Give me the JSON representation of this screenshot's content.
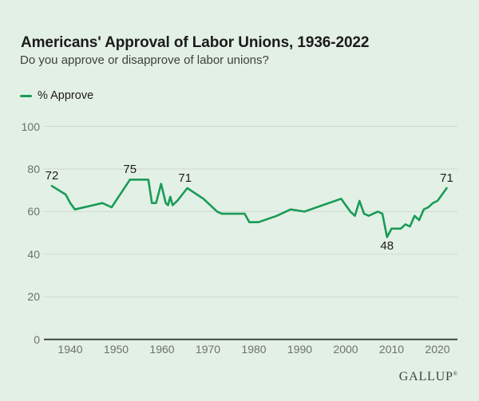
{
  "header": {
    "title": "Americans' Approval of Labor Unions, 1936-2022",
    "subtitle": "Do you approve or disapprove of labor unions?"
  },
  "legend": {
    "label": "% Approve"
  },
  "source": {
    "label": "GALLUP",
    "mark": "®"
  },
  "colors": {
    "background": "#e3f0e5",
    "line": "#199b57",
    "grid": "#d0d9d0",
    "axis": "#40473f",
    "tick_text": "#6c716c",
    "title_text": "#1b1b1b",
    "subtitle_text": "#3b403c",
    "label_text": "#1d1d1d",
    "logo_text": "#3d4540"
  },
  "chart_data": {
    "type": "line",
    "title": "Americans' Approval of Labor Unions, 1936-2022",
    "subtitle": "Do you approve or disapprove of labor unions?",
    "xlabel": "",
    "ylabel": "",
    "ylim": [
      0,
      100
    ],
    "xlim": [
      1934.3,
      2024.3
    ],
    "yticks": [
      0,
      20,
      40,
      60,
      80,
      100
    ],
    "xticks": [
      1940,
      1950,
      1960,
      1970,
      1980,
      1990,
      2000,
      2010,
      2020
    ],
    "grid": "horizontal",
    "legend_position": "top-left",
    "series": [
      {
        "name": "% Approve",
        "points": [
          [
            1936,
            72
          ],
          [
            1939,
            68
          ],
          [
            1940,
            64
          ],
          [
            1941,
            61
          ],
          [
            1947,
            64
          ],
          [
            1949,
            62
          ],
          [
            1953,
            75
          ],
          [
            1957,
            75
          ],
          [
            1957.8,
            64
          ],
          [
            1958.7,
            64
          ],
          [
            1959.8,
            73
          ],
          [
            1960.8,
            64
          ],
          [
            1961.3,
            63
          ],
          [
            1961.8,
            67
          ],
          [
            1962.3,
            63
          ],
          [
            1963.3,
            65
          ],
          [
            1965.5,
            71
          ],
          [
            1969,
            66
          ],
          [
            1972,
            60
          ],
          [
            1973,
            59
          ],
          [
            1978,
            59
          ],
          [
            1979,
            55
          ],
          [
            1981,
            55
          ],
          [
            1985,
            58
          ],
          [
            1988,
            61
          ],
          [
            1991,
            60
          ],
          [
            1999,
            66
          ],
          [
            2001,
            60
          ],
          [
            2002,
            58
          ],
          [
            2003,
            65
          ],
          [
            2004,
            59
          ],
          [
            2005,
            58
          ],
          [
            2006,
            59
          ],
          [
            2007,
            60
          ],
          [
            2008,
            59
          ],
          [
            2009,
            48
          ],
          [
            2010,
            52
          ],
          [
            2011,
            52
          ],
          [
            2012,
            52
          ],
          [
            2013,
            54
          ],
          [
            2014,
            53
          ],
          [
            2015,
            58
          ],
          [
            2016,
            56
          ],
          [
            2017,
            61
          ],
          [
            2018,
            62
          ],
          [
            2019,
            64
          ],
          [
            2020,
            65
          ],
          [
            2021,
            68
          ],
          [
            2022,
            71
          ]
        ]
      }
    ],
    "annotations": [
      {
        "year": 1936,
        "value": 72,
        "label": "72",
        "position": "above"
      },
      {
        "year": 1953,
        "value": 75,
        "label": "75",
        "position": "above"
      },
      {
        "year": 1965,
        "value": 71,
        "label": "71",
        "position": "above"
      },
      {
        "year": 2009,
        "value": 48,
        "label": "48",
        "position": "below"
      },
      {
        "year": 2022,
        "value": 71,
        "label": "71",
        "position": "above"
      }
    ]
  }
}
